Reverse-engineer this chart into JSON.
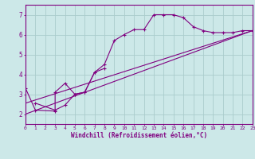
{
  "bg_color": "#cce8e8",
  "line_color": "#800080",
  "grid_color": "#aacccc",
  "axis_color": "#800080",
  "xlabel": "Windchill (Refroidissement éolien,°C)",
  "xlim": [
    0,
    23
  ],
  "ylim": [
    1.5,
    7.5
  ],
  "yticks": [
    2,
    3,
    4,
    5,
    6,
    7
  ],
  "xticks": [
    0,
    1,
    2,
    3,
    4,
    5,
    6,
    7,
    8,
    9,
    10,
    11,
    12,
    13,
    14,
    15,
    16,
    17,
    18,
    19,
    20,
    21,
    22,
    23
  ],
  "curve1_x": [
    0,
    1,
    3,
    3,
    4,
    5,
    6,
    7,
    8,
    9,
    10,
    11,
    12,
    13,
    14,
    15,
    16,
    17,
    18,
    19,
    20,
    21,
    22,
    23
  ],
  "curve1_y": [
    3.3,
    2.2,
    2.15,
    3.1,
    3.55,
    3.0,
    3.1,
    4.1,
    4.5,
    5.7,
    6.0,
    6.25,
    6.25,
    7.0,
    7.0,
    7.0,
    6.85,
    6.4,
    6.2,
    6.1,
    6.1,
    6.1,
    6.2,
    6.2
  ],
  "curve1_marker_x": [
    0,
    1,
    3,
    4,
    5,
    6,
    7,
    8,
    9,
    10,
    11,
    12,
    13,
    14,
    15,
    16,
    17,
    18,
    19,
    20,
    21,
    22,
    23
  ],
  "curve1_marker_y": [
    3.3,
    2.2,
    2.15,
    3.55,
    3.0,
    3.1,
    4.1,
    4.5,
    5.7,
    6.0,
    6.25,
    6.25,
    7.0,
    7.0,
    7.0,
    6.85,
    6.4,
    6.2,
    6.1,
    6.1,
    6.1,
    6.2,
    6.2
  ],
  "curve2_x": [
    1,
    3,
    4,
    5,
    6,
    7,
    8
  ],
  "curve2_y": [
    2.55,
    2.2,
    2.45,
    3.0,
    3.1,
    4.1,
    4.3
  ],
  "line1_x": [
    0,
    23
  ],
  "line1_y": [
    2.0,
    6.2
  ],
  "line2_x": [
    0,
    23
  ],
  "line2_y": [
    2.55,
    6.2
  ]
}
